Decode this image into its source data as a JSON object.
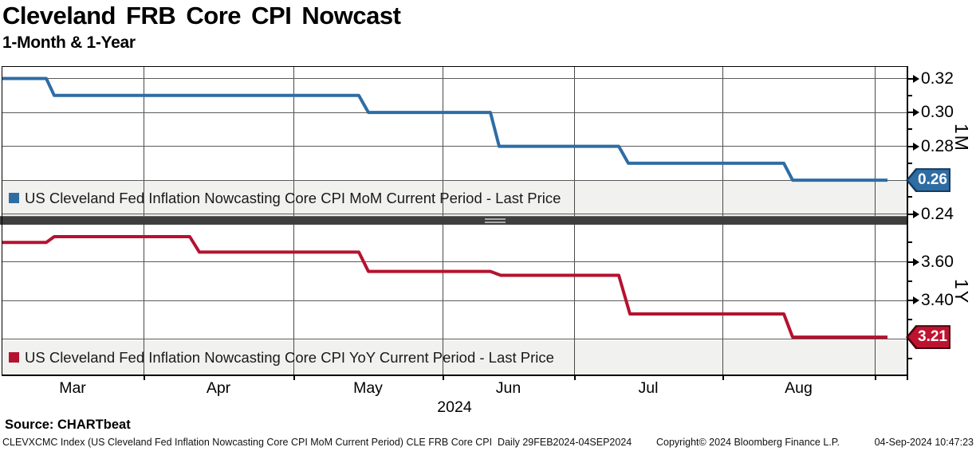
{
  "header": {
    "title": "Cleveland FRB Core CPI Nowcast",
    "subtitle": "1-Month & 1-Year"
  },
  "chart_data": {
    "type": "line",
    "subtype": "step",
    "x_axis": {
      "month_labels": [
        "Mar",
        "Apr",
        "May",
        "Jun",
        "Jul",
        "Aug"
      ],
      "year_label": "2024",
      "date_range": "29FEB2024-04SEP2024"
    },
    "panels": [
      {
        "axis_label": "1M",
        "legend": "US Cleveland Fed Inflation Nowcasting Core CPI MoM Current Period - Last Price",
        "line_color": "#2E6DA4",
        "badge": {
          "label": "0.26",
          "fill": "#2E6DA4",
          "border": "#173A5E"
        },
        "y_ticks_labeled": [
          {
            "label": "0.32",
            "value": 0.32
          },
          {
            "label": "0.30",
            "value": 0.3
          },
          {
            "label": "0.28",
            "value": 0.28
          },
          {
            "label": "0.24",
            "value": 0.24
          }
        ],
        "y_ticks_minor": [
          0.31,
          0.29,
          0.27,
          0.25
        ],
        "gridline_values": [
          0.32,
          0.3,
          0.28,
          0.26,
          0.24
        ],
        "y_range": [
          0.2389,
          0.3273
        ],
        "last_value": 0.26,
        "steps": [
          {
            "date": "29FEB2024",
            "value": 0.32
          },
          {
            "date": "12MAR2024",
            "value": 0.31
          },
          {
            "date": "15MAY2024",
            "value": 0.3
          },
          {
            "date": "12JUN2024",
            "value": 0.28
          },
          {
            "date": "11JUL2024",
            "value": 0.27
          },
          {
            "date": "14AUG2024",
            "value": 0.26
          }
        ],
        "polyline": [
          [
            2,
            0.32
          ],
          [
            58,
            0.32
          ],
          [
            68,
            0.31
          ],
          [
            450,
            0.31
          ],
          [
            462,
            0.3
          ],
          [
            615,
            0.3
          ],
          [
            626,
            0.28
          ],
          [
            776,
            0.28
          ],
          [
            788,
            0.27
          ],
          [
            983,
            0.27
          ],
          [
            994,
            0.26
          ],
          [
            1113,
            0.26
          ]
        ]
      },
      {
        "axis_label": "1Y",
        "legend": "US Cleveland Fed Inflation Nowcasting Core CPI YoY Current Period - Last Price",
        "line_color": "#B5122F",
        "badge": {
          "label": "3.21",
          "fill": "#BE1330",
          "border": "#47060F"
        },
        "y_ticks_labeled": [
          {
            "label": "3.60",
            "value": 3.6
          },
          {
            "label": "3.40",
            "value": 3.4
          }
        ],
        "y_ticks_minor": [
          3.7,
          3.5,
          3.3,
          3.1
        ],
        "gridline_values": [
          3.6,
          3.4,
          3.2
        ],
        "y_range": [
          3.0164,
          3.7876
        ],
        "last_value": 3.21,
        "steps": [
          {
            "date": "29FEB2024",
            "value": 3.7
          },
          {
            "date": "12MAR2024",
            "value": 3.73
          },
          {
            "date": "10APR2024",
            "value": 3.65
          },
          {
            "date": "15MAY2024",
            "value": 3.55
          },
          {
            "date": "12JUN2024",
            "value": 3.53
          },
          {
            "date": "11JUL2024",
            "value": 3.33
          },
          {
            "date": "14AUG2024",
            "value": 3.21
          }
        ],
        "polyline": [
          [
            2,
            3.7
          ],
          [
            58,
            3.7
          ],
          [
            68,
            3.73
          ],
          [
            238,
            3.73
          ],
          [
            250,
            3.65
          ],
          [
            450,
            3.65
          ],
          [
            462,
            3.55
          ],
          [
            615,
            3.55
          ],
          [
            628,
            3.53
          ],
          [
            776,
            3.53
          ],
          [
            790,
            3.33
          ],
          [
            983,
            3.33
          ],
          [
            994,
            3.21
          ],
          [
            1113,
            3.21
          ]
        ]
      }
    ]
  },
  "footer": {
    "source": "Source: CHARTbeat",
    "info_left": "CLEVXCMC Index (US Cleveland Fed Inflation Nowcasting Core CPI MoM Current Period) CLE FRB Core CPI  Daily 29FEB2024-04SEP2024",
    "copyright": "Copyright© 2024 Bloomberg Finance L.P.",
    "datetime": "04-Sep-2024 10:47:23"
  }
}
